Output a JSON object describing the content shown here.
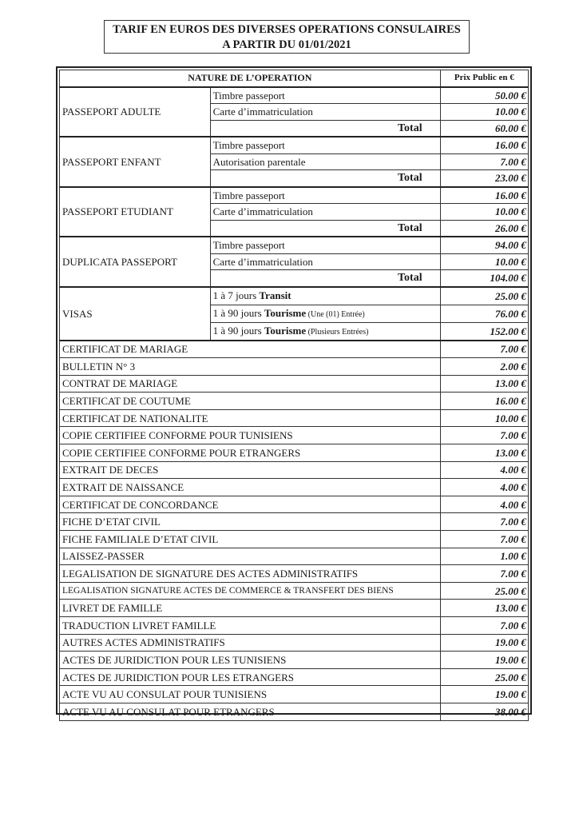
{
  "title": {
    "line1": "TARIF EN EUROS DES DIVERSES OPERATIONS CONSULAIRES",
    "line2": "A PARTIR DU 01/01/2021"
  },
  "table": {
    "header": {
      "nature": "NATURE DE L’OPERATION",
      "price": "Prix Public en  €"
    },
    "total_label": "Total",
    "groups": [
      {
        "name": "PASSEPORT ADULTE",
        "items": [
          {
            "label": "Timbre passeport",
            "price": "50.00 €"
          },
          {
            "label": "Carte d’immatriculation",
            "price": "10.00 €"
          }
        ],
        "total": "60.00 €"
      },
      {
        "name": "PASSEPORT ENFANT",
        "items": [
          {
            "label": "Timbre passeport",
            "price": "16.00 €"
          },
          {
            "label": "Autorisation parentale",
            "price": "7.00 €"
          }
        ],
        "total": "23.00 €"
      },
      {
        "name": "PASSEPORT ETUDIANT",
        "items": [
          {
            "label": "Timbre passeport",
            "price": "16.00 €"
          },
          {
            "label": "Carte d’immatriculation",
            "price": "10.00 €"
          }
        ],
        "total": "26.00 €"
      },
      {
        "name": "DUPLICATA PASSEPORT",
        "items": [
          {
            "label": "Timbre passeport",
            "price": "94.00 €"
          },
          {
            "label": "Carte d’immatriculation",
            "price": "10.00 €"
          }
        ],
        "total": "104.00 €"
      }
    ],
    "visas": {
      "name": "VISAS",
      "items": [
        {
          "prefix": "1 à 7 jours ",
          "bold": "Transit",
          "suffix": "",
          "price": "25.00 €"
        },
        {
          "prefix": "1 à 90 jours ",
          "bold": "Tourisme",
          "suffix": " (Une (01) Entrée)",
          "price": "76.00 €"
        },
        {
          "prefix": "1 à 90 jours ",
          "bold": "Tourisme",
          "suffix": " (Plusieurs Entrées)",
          "price": "152.00 €"
        }
      ]
    },
    "rows": [
      {
        "label": "CERTIFICAT DE MARIAGE",
        "price": "7.00 €"
      },
      {
        "label": "BULLETIN N° 3",
        "price": "2.00 €"
      },
      {
        "label": "CONTRAT DE MARIAGE",
        "price": "13.00 €"
      },
      {
        "label": "CERTIFICAT DE COUTUME",
        "price": "16.00 €"
      },
      {
        "label": "CERTIFICAT DE NATIONALITE",
        "price": "10.00 €"
      },
      {
        "label": "COPIE CERTIFIEE CONFORME POUR TUNISIENS",
        "price": "7.00 €"
      },
      {
        "label": "COPIE CERTIFIEE CONFORME POUR ETRANGERS",
        "price": "13.00 €"
      },
      {
        "label": "EXTRAIT DE DECES",
        "price": "4.00 €"
      },
      {
        "label": "EXTRAIT DE NAISSANCE",
        "price": "4.00 €"
      },
      {
        "label": "CERTIFICAT DE CONCORDANCE",
        "price": "4.00 €"
      },
      {
        "label": "FICHE D’ETAT CIVIL",
        "price": "7.00 €"
      },
      {
        "label": "FICHE FAMILIALE D’ETAT CIVIL",
        "price": "7.00 €"
      },
      {
        "label": "LAISSEZ-PASSER",
        "price": "1.00 €"
      },
      {
        "label": "LEGALISATION DE SIGNATURE DES ACTES ADMINISTRATIFS",
        "price": "7.00 €"
      },
      {
        "label": "LEGALISATION SIGNATURE ACTES DE COMMERCE & TRANSFERT DES BIENS",
        "price": "25.00 €"
      },
      {
        "label": "LIVRET DE FAMILLE",
        "price": "13.00 €"
      },
      {
        "label": "TRADUCTION LIVRET FAMILLE",
        "price": "7.00 €"
      },
      {
        "label": "AUTRES ACTES ADMINISTRATIFS",
        "price": "19.00 €"
      },
      {
        "label": "ACTES DE JURIDICTION POUR LES TUNISIENS",
        "price": "19.00 €"
      },
      {
        "label": "ACTES DE JURIDICTION POUR LES ETRANGERS",
        "price": "25.00 €"
      },
      {
        "label": "ACTE VU AU CONSULAT POUR TUNISIENS",
        "price": "19.00 €"
      },
      {
        "label": "ACTE VU AU CONSULAT POUR ETRANGERS",
        "price": "38.00 €"
      }
    ]
  }
}
